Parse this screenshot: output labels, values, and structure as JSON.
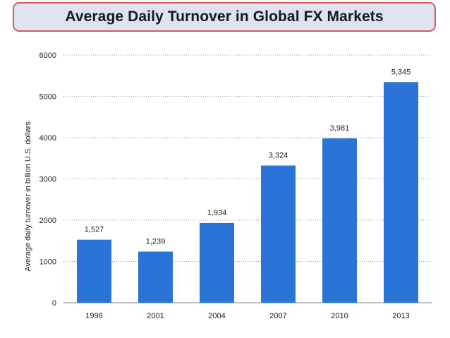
{
  "chart_data": {
    "type": "bar",
    "title": "Average Daily Turnover in Global FX Markets",
    "xlabel": "",
    "ylabel": "Average daily turnover in billion U.S. dollars",
    "categories": [
      "1998",
      "2001",
      "2004",
      "2007",
      "2010",
      "2013"
    ],
    "values": [
      1527,
      1239,
      1934,
      3324,
      3981,
      5345
    ],
    "data_labels": [
      "1,527",
      "1,239",
      "1,934",
      "3,324",
      "3,981",
      "5,345"
    ],
    "y_ticks": [
      0,
      1000,
      2000,
      3000,
      4000,
      5000,
      6000
    ],
    "ylim": [
      0,
      6000
    ],
    "grid": "horizontal dotted",
    "legend": "none",
    "bar_color": "#2a74d8",
    "title_box_color": "#dde3f1",
    "title_border_color": "#d25c5c"
  }
}
